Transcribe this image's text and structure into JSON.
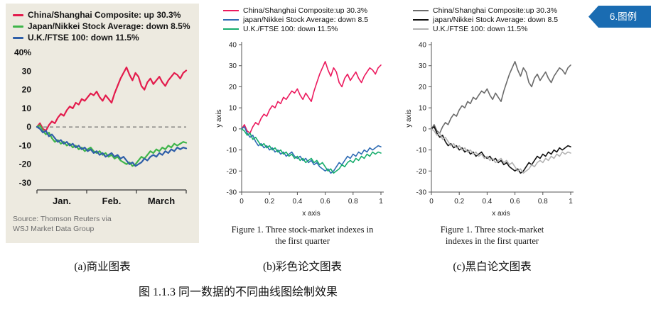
{
  "callout": {
    "label": "6.图例",
    "color": "#1a6cb2"
  },
  "panel_a": {
    "legend": [
      "China/Shanghai Composite: up 30.3%",
      "Japan/Nikkei Stock Average: down 8.5%",
      "U.K./FTSE 100: down 11.5%"
    ],
    "yticks": [
      "40%",
      "30",
      "20",
      "10",
      "0",
      "-10",
      "-20",
      "-30"
    ],
    "xticks": [
      "Jan.",
      "Feb.",
      "March"
    ],
    "source": "Source: Thomson Reuters via\nWSJ Market Data Group",
    "caption": "(a)商业图表",
    "background": "#edeae0"
  },
  "panel_b": {
    "legend": [
      "China/Shanghai Composite:up 30.3%",
      "japan/Nikkei Stock Average: down 8.5",
      "U.K./FTSE 100: down 11.5%"
    ],
    "yticks": [
      "40",
      "30",
      "20",
      "10",
      "0",
      "-10",
      "-20",
      "-30"
    ],
    "xticks": [
      "0",
      "0.2",
      "0.4",
      "0.6",
      "0.8",
      "1"
    ],
    "ylabel": "y axis",
    "xlabel": "x axis",
    "figure_caption": "Figure 1. Three stock-market indexes in\nthe first quarter",
    "caption": "(b)彩色论文图表"
  },
  "panel_c": {
    "legend": [
      "China/Shanghai Composite:up 30.3%",
      "japan/Nikkei Stock Average: down 8.5",
      "U.K./FTSE 100: down 11.5%"
    ],
    "yticks": [
      "40",
      "30",
      "20",
      "10",
      "0",
      "-10",
      "-20",
      "-30"
    ],
    "xticks": [
      "0",
      "0.2",
      "0.4",
      "0.6",
      "0.8",
      "1"
    ],
    "ylabel": "y axis",
    "xlabel": "x axis",
    "figure_caption": "Figure 1. Three stock-market\nindexes in the first quarter",
    "caption": "(c)黑白论文图表"
  },
  "figure_caption": "图 1.1.3  同一数据的不同曲线图绘制效果",
  "chart_data": {
    "type": "line",
    "title": "Three stock-market indexes in the first quarter",
    "xlabel": "x axis",
    "ylabel": "y axis",
    "xlim": [
      0,
      1
    ],
    "ylim": [
      -30,
      40
    ],
    "grid": false,
    "legend_position": "top",
    "x": [
      0,
      0.02,
      0.04,
      0.06,
      0.08,
      0.1,
      0.12,
      0.14,
      0.16,
      0.18,
      0.2,
      0.22,
      0.24,
      0.26,
      0.28,
      0.3,
      0.32,
      0.34,
      0.36,
      0.38,
      0.4,
      0.42,
      0.44,
      0.46,
      0.48,
      0.5,
      0.52,
      0.54,
      0.56,
      0.58,
      0.6,
      0.62,
      0.64,
      0.66,
      0.68,
      0.7,
      0.72,
      0.74,
      0.76,
      0.78,
      0.8,
      0.82,
      0.84,
      0.86,
      0.88,
      0.9,
      0.92,
      0.94,
      0.96,
      0.98,
      1
    ],
    "series": [
      {
        "name": "China/Shanghai Composite",
        "change": "up 30.3%",
        "values": [
          0,
          2,
          -1,
          -2,
          1,
          3,
          2,
          5,
          7,
          6,
          9,
          11,
          10,
          13,
          12,
          15,
          14,
          16,
          18,
          17,
          19,
          16,
          14,
          17,
          15,
          13,
          18,
          22,
          26,
          29,
          32,
          28,
          25,
          29,
          27,
          22,
          20,
          24,
          26,
          23,
          25,
          27,
          24,
          22,
          25,
          27,
          29,
          28,
          26,
          29,
          30.3
        ]
      },
      {
        "name": "Japan/Nikkei Stock Average",
        "change": "down 8.5%",
        "values": [
          0,
          1,
          -2,
          -4,
          -3,
          -6,
          -8,
          -7,
          -9,
          -8,
          -10,
          -9,
          -11,
          -10,
          -12,
          -11,
          -13,
          -12,
          -11,
          -13,
          -14,
          -13,
          -15,
          -14,
          -16,
          -15,
          -17,
          -16,
          -18,
          -19,
          -20,
          -19,
          -21,
          -20,
          -18,
          -16,
          -17,
          -15,
          -13,
          -14,
          -12,
          -13,
          -11,
          -12,
          -10,
          -11,
          -9,
          -10,
          -9,
          -8,
          -8.5
        ]
      },
      {
        "name": "U.K./FTSE 100",
        "change": "down 11.5%",
        "values": [
          0,
          -1,
          -3,
          -2,
          -5,
          -4,
          -6,
          -8,
          -7,
          -9,
          -8,
          -10,
          -9,
          -11,
          -10,
          -12,
          -11,
          -13,
          -12,
          -14,
          -13,
          -15,
          -14,
          -16,
          -15,
          -14,
          -16,
          -15,
          -17,
          -16,
          -18,
          -20,
          -19,
          -21,
          -20,
          -19,
          -17,
          -18,
          -16,
          -15,
          -16,
          -14,
          -15,
          -13,
          -14,
          -12,
          -13,
          -11,
          -12,
          -11,
          -11.5
        ]
      }
    ],
    "variants": [
      {
        "id": "a",
        "style": "business",
        "colors": [
          "#e31b4c",
          "#3fb54a",
          "#2f5fa8"
        ]
      },
      {
        "id": "b",
        "style": "color-paper",
        "colors": [
          "#ec1a5e",
          "#2f6cb4",
          "#17ad6d"
        ]
      },
      {
        "id": "c",
        "style": "bw-paper",
        "colors": [
          "#6b6b6b",
          "#111111",
          "#b3b3b3"
        ]
      }
    ]
  }
}
